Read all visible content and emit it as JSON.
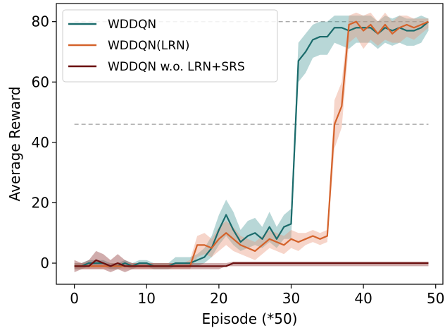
{
  "chart_data": {
    "type": "line",
    "title": "",
    "xlabel": "Episode (*50)",
    "ylabel": "Average Reward",
    "xlim": [
      -2.5,
      51
    ],
    "ylim": [
      -7,
      86
    ],
    "xticks": [
      0,
      10,
      20,
      30,
      40,
      50
    ],
    "yticks": [
      0,
      20,
      40,
      60,
      80
    ],
    "grid": false,
    "legend_position": "top-left",
    "reference_lines": [
      {
        "y": 80,
        "x_start": 0,
        "x_end": 49,
        "style": "dashed",
        "color": "#aaaaaa"
      },
      {
        "y": 46,
        "x_start": 0,
        "x_end": 49,
        "style": "dashed",
        "color": "#aaaaaa"
      }
    ],
    "x": [
      0,
      1,
      2,
      3,
      4,
      5,
      6,
      7,
      8,
      9,
      10,
      11,
      12,
      13,
      14,
      15,
      16,
      17,
      18,
      19,
      20,
      21,
      22,
      23,
      24,
      25,
      26,
      27,
      28,
      29,
      30,
      31,
      32,
      33,
      34,
      35,
      36,
      37,
      38,
      39,
      40,
      41,
      42,
      43,
      44,
      45,
      46,
      47,
      48,
      49
    ],
    "series": [
      {
        "name": "WDDQN",
        "color": "#1a6b6b",
        "band_color": "#4e9a9a",
        "values": [
          -1,
          -1,
          0,
          0,
          0,
          -1,
          -1,
          0,
          -1,
          0,
          0,
          -1,
          -1,
          -1,
          0,
          0,
          0,
          1,
          2,
          5,
          11,
          16,
          11,
          7,
          9,
          10,
          8,
          12,
          8,
          12,
          13,
          67,
          70,
          74,
          75,
          75,
          78,
          78,
          77,
          78,
          78,
          78,
          76,
          78,
          77,
          78,
          77,
          77,
          78,
          80
        ],
        "band": [
          [
            -2,
            0
          ],
          [
            -2,
            0
          ],
          [
            -1,
            1
          ],
          [
            -1,
            1
          ],
          [
            -1,
            1
          ],
          [
            -2,
            0
          ],
          [
            -2,
            0
          ],
          [
            -1,
            1
          ],
          [
            -2,
            0
          ],
          [
            -1,
            1
          ],
          [
            -1,
            1
          ],
          [
            -2,
            0
          ],
          [
            -2,
            0
          ],
          [
            -2,
            0
          ],
          [
            -1,
            2
          ],
          [
            -1,
            2
          ],
          [
            -1,
            2
          ],
          [
            -1,
            3
          ],
          [
            0,
            5
          ],
          [
            2,
            9
          ],
          [
            6,
            16
          ],
          [
            9,
            21
          ],
          [
            6,
            17
          ],
          [
            4,
            11
          ],
          [
            5,
            14
          ],
          [
            6,
            15
          ],
          [
            5,
            12
          ],
          [
            7,
            17
          ],
          [
            5,
            12
          ],
          [
            8,
            16
          ],
          [
            8,
            18
          ],
          [
            60,
            73
          ],
          [
            63,
            76
          ],
          [
            68,
            79
          ],
          [
            69,
            80
          ],
          [
            69,
            80
          ],
          [
            73,
            82
          ],
          [
            72,
            82
          ],
          [
            71,
            82
          ],
          [
            73,
            82
          ],
          [
            73,
            82
          ],
          [
            73,
            82
          ],
          [
            71,
            80
          ],
          [
            73,
            82
          ],
          [
            72,
            81
          ],
          [
            73,
            82
          ],
          [
            72,
            81
          ],
          [
            72,
            81
          ],
          [
            73,
            82
          ],
          [
            77,
            81
          ]
        ]
      },
      {
        "name": "WDDQN(LRN)",
        "color": "#d4622a",
        "band_color": "#e8977a",
        "values": [
          -1,
          -1,
          -1,
          -1,
          -1,
          -1,
          -1,
          -1,
          -1,
          -1,
          -1,
          -1,
          -1,
          -1,
          -1,
          -1,
          -1,
          6,
          6,
          5,
          8,
          10,
          8,
          6,
          5,
          4,
          6,
          8,
          7,
          6,
          8,
          7,
          8,
          9,
          8,
          9,
          46,
          52,
          79,
          80,
          77,
          79,
          76,
          79,
          76,
          78,
          79,
          78,
          79,
          80
        ],
        "band": [
          [
            -2,
            0
          ],
          [
            -2,
            0
          ],
          [
            -2,
            0
          ],
          [
            -2,
            0
          ],
          [
            -2,
            0
          ],
          [
            -2,
            0
          ],
          [
            -2,
            0
          ],
          [
            -2,
            0
          ],
          [
            -2,
            0
          ],
          [
            -2,
            0
          ],
          [
            -2,
            0
          ],
          [
            -2,
            0
          ],
          [
            -2,
            0
          ],
          [
            -2,
            0
          ],
          [
            -2,
            0
          ],
          [
            -2,
            0
          ],
          [
            -2,
            1
          ],
          [
            2,
            9
          ],
          [
            3,
            10
          ],
          [
            2,
            8
          ],
          [
            4,
            12
          ],
          [
            6,
            14
          ],
          [
            4,
            12
          ],
          [
            3,
            9
          ],
          [
            2,
            8
          ],
          [
            1,
            7
          ],
          [
            3,
            9
          ],
          [
            5,
            11
          ],
          [
            4,
            10
          ],
          [
            3,
            9
          ],
          [
            5,
            11
          ],
          [
            4,
            10
          ],
          [
            6,
            10
          ],
          [
            7,
            11
          ],
          [
            6,
            10
          ],
          [
            7,
            11
          ],
          [
            38,
            54
          ],
          [
            45,
            60
          ],
          [
            73,
            82
          ],
          [
            75,
            83
          ],
          [
            71,
            82
          ],
          [
            74,
            83
          ],
          [
            72,
            80
          ],
          [
            74,
            83
          ],
          [
            73,
            80
          ],
          [
            73,
            82
          ],
          [
            75,
            82
          ],
          [
            74,
            81
          ],
          [
            76,
            81
          ],
          [
            78,
            81
          ]
        ]
      },
      {
        "name": "WDDQN w.o. LRN+SRS",
        "color": "#6b1010",
        "band_color": "#8a3030",
        "values": [
          -1,
          -1,
          -1,
          1,
          0,
          -1,
          0,
          -1,
          -1,
          -1,
          -1,
          -1,
          -1,
          -1,
          -1,
          -1,
          -1,
          -1,
          -1,
          -1,
          -1,
          -1,
          0,
          0,
          0,
          0,
          0,
          0,
          0,
          0,
          0,
          0,
          0,
          0,
          0,
          0,
          0,
          0,
          0,
          0,
          0,
          0,
          0,
          0,
          0,
          0,
          0,
          0,
          0,
          0
        ],
        "band": [
          [
            -3,
            1
          ],
          [
            -2,
            0
          ],
          [
            -2,
            1
          ],
          [
            -2,
            4
          ],
          [
            -2,
            3
          ],
          [
            -3,
            1
          ],
          [
            -2,
            3
          ],
          [
            -3,
            1
          ],
          [
            -2,
            0
          ],
          [
            -2,
            0
          ],
          [
            -2,
            0
          ],
          [
            -2,
            0
          ],
          [
            -2,
            0
          ],
          [
            -2,
            0
          ],
          [
            -2,
            0
          ],
          [
            -2,
            0
          ],
          [
            -2,
            0
          ],
          [
            -2,
            0
          ],
          [
            -2,
            0
          ],
          [
            -2,
            0
          ],
          [
            -2,
            0
          ],
          [
            -1,
            0
          ],
          [
            -1,
            0.5
          ],
          [
            -1,
            0.5
          ],
          [
            -1,
            0.5
          ],
          [
            -1,
            0.5
          ],
          [
            -1,
            0.5
          ],
          [
            -1,
            0.5
          ],
          [
            -1,
            0.5
          ],
          [
            -1,
            0.5
          ],
          [
            -1,
            0.5
          ],
          [
            -1,
            0.5
          ],
          [
            -1,
            0.5
          ],
          [
            -1,
            0.5
          ],
          [
            -1,
            0.5
          ],
          [
            -1,
            0.5
          ],
          [
            -1,
            0.5
          ],
          [
            -1,
            0.5
          ],
          [
            -1,
            0.5
          ],
          [
            -1,
            0.5
          ],
          [
            -1,
            0.5
          ],
          [
            -1,
            0.5
          ],
          [
            -1,
            0.5
          ],
          [
            -1,
            0.5
          ],
          [
            -1,
            0.5
          ],
          [
            -1,
            0.5
          ],
          [
            -1,
            0.5
          ],
          [
            -1,
            0.5
          ],
          [
            -1,
            0.5
          ],
          [
            -1,
            0.5
          ]
        ]
      }
    ]
  }
}
